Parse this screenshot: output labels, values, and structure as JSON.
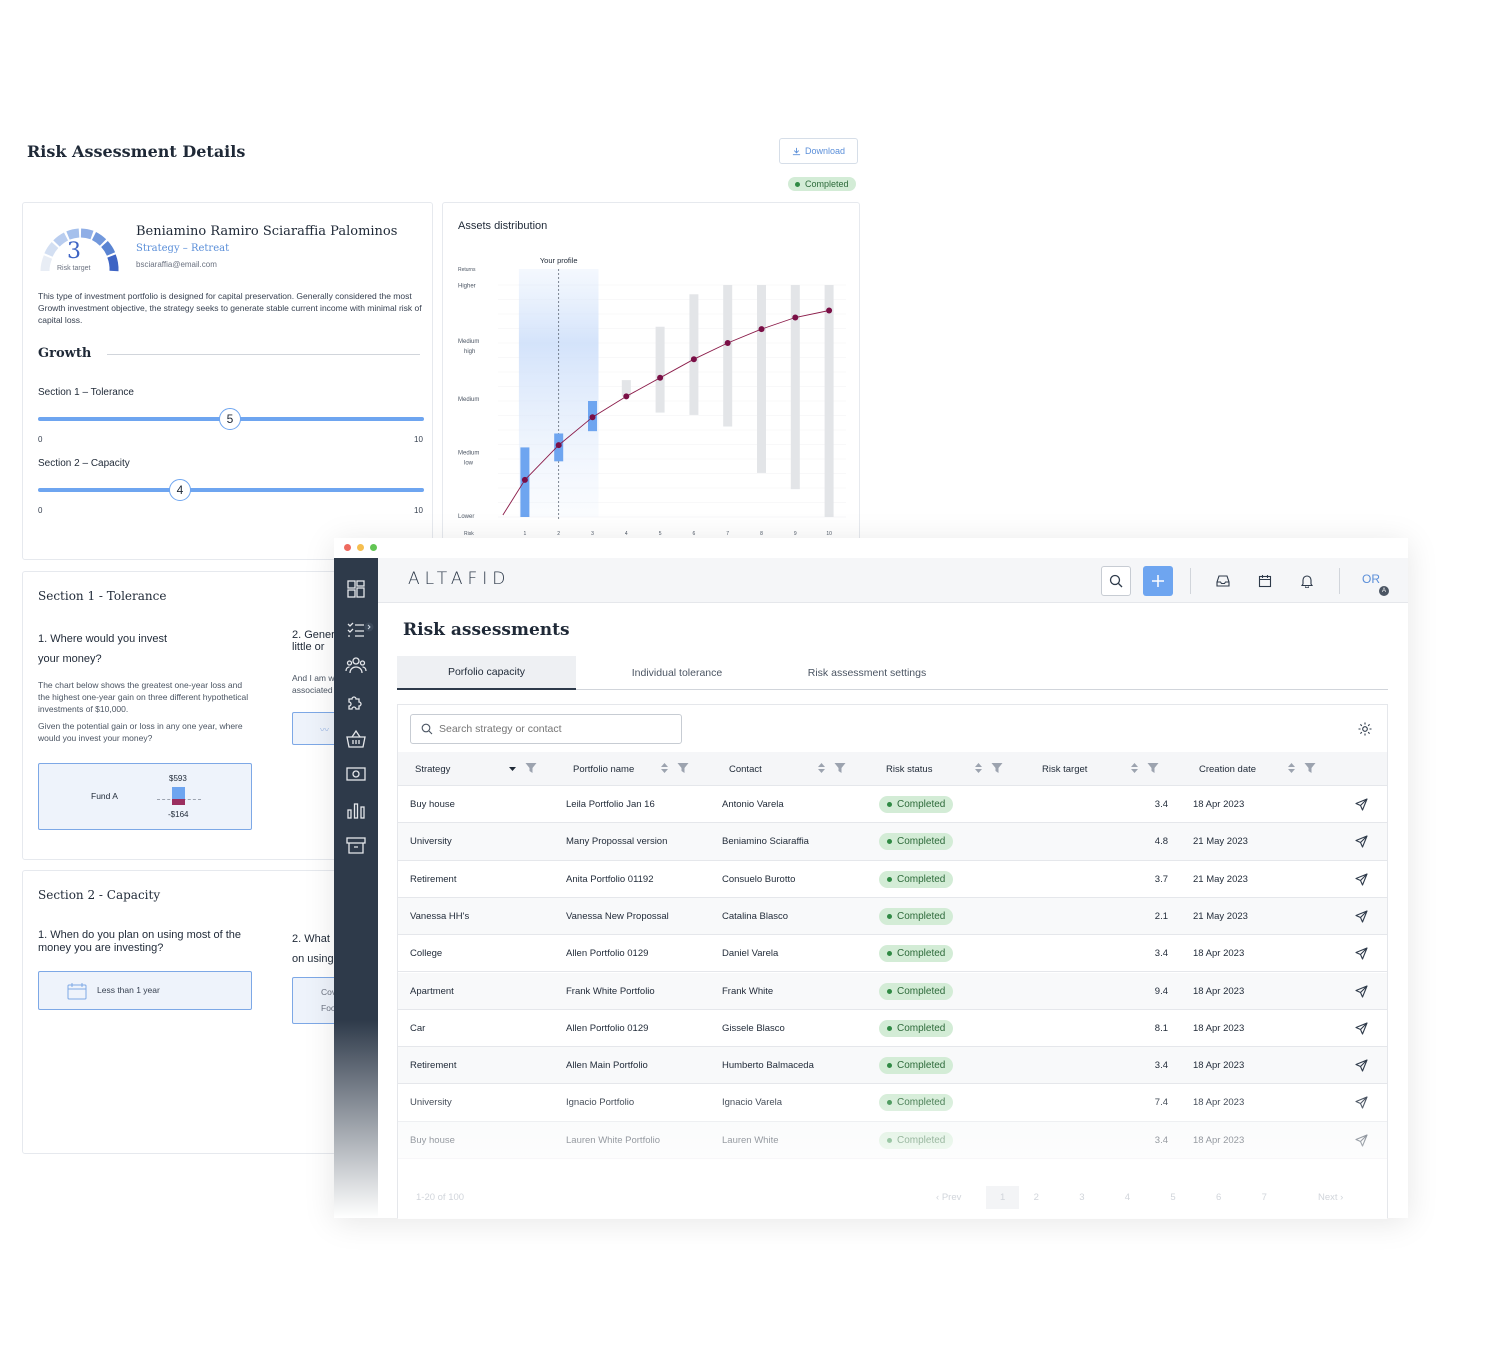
{
  "details": {
    "title": "Risk Assessment Details",
    "download_label": "Download",
    "status": "Completed",
    "profile": {
      "risk_target_value": "3",
      "risk_target_label": "Risk target",
      "name": "Beniamino Ramiro Sciaraffia Palominos",
      "strategy": "Strategy – Retreat",
      "email": "bsciaraffia@email.com",
      "description": "This type of investment portfolio is designed for capital preservation. Generally considered the most Growth investment objective, the strategy seeks to generate stable current income with minimal risk of capital loss.",
      "profile_title": "Growth",
      "sliders": [
        {
          "label": "Section 1 – Tolerance",
          "value": "5",
          "min": "0",
          "max": "10",
          "level": 0.5
        },
        {
          "label": "Section 2 – Capacity",
          "value": "4",
          "min": "0",
          "max": "10",
          "level": 0.4
        }
      ]
    },
    "assets": {
      "title": "Assets distribution",
      "your_profile": "Your profile"
    },
    "tolerance": {
      "title": "Section 1 - Tolerance",
      "q1_title": "1. Where would you invest your money?",
      "q1_text1": "The chart below shows the greatest one-year loss and the highest one-year gain on three different hypothetical investments of $10,000.",
      "q1_text2": "Given the potential gain or loss in any one year, where would you invest your money?",
      "fund_label": "Fund A",
      "fund_gain": "$593",
      "fund_loss": "-$164",
      "q2_title": "2. Gener little or",
      "q2_text": "And I am w associated"
    },
    "capacity": {
      "title": "Section 2 - Capacity",
      "q1_title": "1. When do you plan on using most of the money you are investing?",
      "q1_answer": "Less than 1 year",
      "q2_title": "2. What on using",
      "q2_answer_a": "Cov",
      "q2_answer_b": "Foo"
    }
  },
  "app": {
    "brand": "ALTAFID",
    "avatar_initials": "OR",
    "avatar_badge": "A",
    "page_title": "Risk assessments",
    "tabs": [
      "Porfolio capacity",
      "Individual tolerance",
      "Risk assessment settings"
    ],
    "search_placeholder": "Search strategy or contact",
    "columns": [
      "Strategy",
      "Portfolio name",
      "Contact",
      "Risk status",
      "Risk target",
      "Creation date"
    ],
    "rows": [
      {
        "strategy": "Buy house",
        "portfolio": "Leila Portfolio Jan 16",
        "contact": "Antonio Varela",
        "status": "Completed",
        "target": "3.4",
        "date": "18 Apr 2023"
      },
      {
        "strategy": "University",
        "portfolio": "Many Propossal version",
        "contact": "Beniamino Sciaraffia",
        "status": "Completed",
        "target": "4.8",
        "date": "21 May 2023"
      },
      {
        "strategy": "Retirement",
        "portfolio": "Anita Portfolio 01192",
        "contact": "Consuelo Burotto",
        "status": "Completed",
        "target": "3.7",
        "date": "21 May 2023"
      },
      {
        "strategy": "Vanessa HH's",
        "portfolio": "Vanessa New Propossal",
        "contact": "Catalina Blasco",
        "status": "Completed",
        "target": "2.1",
        "date": "21 May 2023"
      },
      {
        "strategy": "College",
        "portfolio": "Allen Portfolio 0129",
        "contact": "Daniel Varela",
        "status": "Completed",
        "target": "3.4",
        "date": "18 Apr 2023"
      },
      {
        "strategy": "Apartment",
        "portfolio": "Frank White Portfolio",
        "contact": "Frank White",
        "status": "Completed",
        "target": "9.4",
        "date": "18 Apr 2023"
      },
      {
        "strategy": "Car",
        "portfolio": "Allen Portfolio 0129",
        "contact": "Gissele Blasco",
        "status": "Completed",
        "target": "8.1",
        "date": "18 Apr 2023"
      },
      {
        "strategy": "Retirement",
        "portfolio": "Allen Main Portfolio",
        "contact": "Humberto Balmaceda",
        "status": "Completed",
        "target": "3.4",
        "date": "18 Apr 2023"
      },
      {
        "strategy": "University",
        "portfolio": "Ignacio Portfolio",
        "contact": "Ignacio Varela",
        "status": "Completed",
        "target": "7.4",
        "date": "18 Apr 2023"
      },
      {
        "strategy": "Buy house",
        "portfolio": "Lauren White Portfolio",
        "contact": "Lauren White",
        "status": "Completed",
        "target": "3.4",
        "date": "18 Apr 2023"
      }
    ],
    "pager": {
      "summary": "1-20 of 100",
      "prev": "Prev",
      "pages": [
        "1",
        "2",
        "3",
        "4",
        "5",
        "6",
        "7"
      ],
      "next": "Next"
    }
  },
  "chart_data": {
    "type": "line",
    "title": "Assets distribution",
    "xlabel": "Risk",
    "ylabel": "Returns",
    "x": [
      1,
      2,
      3,
      4,
      5,
      6,
      7,
      8,
      9,
      10
    ],
    "y_categories": [
      "Lower",
      "Medium low",
      "Medium",
      "Medium high",
      "Higher"
    ],
    "series": [
      {
        "values": [
          0.16,
          0.31,
          0.43,
          0.52,
          0.6,
          0.68,
          0.75,
          0.81,
          0.86,
          0.89
        ]
      }
    ],
    "ranges": [
      [
        0.0,
        0.3
      ],
      [
        0.24,
        0.36
      ],
      [
        0.37,
        0.5
      ],
      [
        0.52,
        0.59
      ],
      [
        0.45,
        0.82
      ],
      [
        0.44,
        0.96
      ],
      [
        0.39,
        1.0
      ],
      [
        0.19,
        1.0
      ],
      [
        0.12,
        1.0
      ],
      [
        0.0,
        1.0
      ]
    ],
    "highlight_x": 2,
    "highlight_label": "Your profile",
    "ylim": [
      0,
      1
    ],
    "colors": {
      "line": "#8b1c4a",
      "point": "#7a0f46",
      "bar": "#e3e5e8",
      "bar_active": "#6ea5f0"
    }
  },
  "colors": {
    "accent": "#5b8fd9",
    "sidebar": "#2e3a4a",
    "completed_bg": "#d3ecd6",
    "completed_text": "#2d6a3a"
  }
}
